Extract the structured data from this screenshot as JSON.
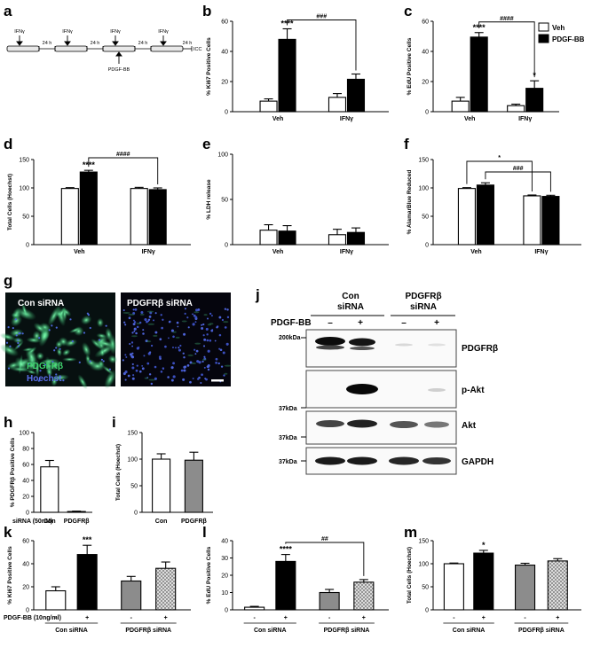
{
  "panels": {
    "a": "a",
    "b": "b",
    "c": "c",
    "d": "d",
    "e": "e",
    "f": "f",
    "g": "g",
    "h": "h",
    "i": "i",
    "j": "j",
    "k": "k",
    "l": "l",
    "m": "m"
  },
  "timeline": {
    "ifn": "IFNγ",
    "h24": "24 h",
    "icc": "ICC",
    "pdgf": "PDGF-BB"
  },
  "legend": {
    "veh": "Veh",
    "pdgf": "PDGF-BB"
  },
  "colors": {
    "black": "#000000",
    "white": "#ffffff",
    "gray": "#8c8c8c"
  },
  "chart_data": [
    {
      "id": "b",
      "type": "bar",
      "ylabel": "% Ki67 Positive Cells",
      "ylim": [
        0,
        60
      ],
      "yticks": [
        0,
        20,
        40,
        60
      ],
      "categories": [
        "Veh",
        "IFNγ"
      ],
      "series": [
        {
          "name": "Veh",
          "values": [
            7,
            9.5
          ],
          "err": [
            1.5,
            2.5
          ]
        },
        {
          "name": "PDGF-BB",
          "values": [
            48,
            21.5
          ],
          "err": [
            7,
            3.5
          ]
        }
      ],
      "annotations": [
        {
          "text": "****"
        },
        {
          "text": "###"
        }
      ]
    },
    {
      "id": "c",
      "type": "bar",
      "ylabel": "% EdU Positive Cells",
      "ylim": [
        0,
        60
      ],
      "yticks": [
        0,
        20,
        40,
        60
      ],
      "categories": [
        "Veh",
        "IFNγ"
      ],
      "series": [
        {
          "name": "Veh",
          "values": [
            7,
            4
          ],
          "err": [
            2.5,
            1
          ]
        },
        {
          "name": "PDGF-BB",
          "values": [
            49.5,
            15.5
          ],
          "err": [
            3,
            5
          ]
        }
      ],
      "annotations": [
        {
          "text": "****"
        },
        {
          "text": "####"
        },
        {
          "text": "*"
        }
      ]
    },
    {
      "id": "d",
      "type": "bar",
      "ylabel": "Total Cells (Hoechst)",
      "ylim": [
        0,
        150
      ],
      "yticks": [
        0,
        50,
        100,
        150
      ],
      "categories": [
        "Veh",
        "IFNγ"
      ],
      "series": [
        {
          "name": "Veh",
          "values": [
            99,
            99
          ],
          "err": [
            1.5,
            2
          ]
        },
        {
          "name": "PDGF-BB",
          "values": [
            128,
            97
          ],
          "err": [
            3,
            3
          ]
        }
      ],
      "annotations": [
        {
          "text": "****"
        },
        {
          "text": "####"
        }
      ]
    },
    {
      "id": "e",
      "type": "bar",
      "ylabel": "% LDH release",
      "ylim": [
        0,
        100
      ],
      "yticks": [
        0,
        50,
        100
      ],
      "categories": [
        "Veh",
        "IFNγ"
      ],
      "series": [
        {
          "name": "Veh",
          "values": [
            16,
            11
          ],
          "err": [
            6,
            6
          ]
        },
        {
          "name": "PDGF-BB",
          "values": [
            15,
            13.5
          ],
          "err": [
            6,
            5
          ]
        }
      ],
      "annotations": []
    },
    {
      "id": "f",
      "type": "bar",
      "ylabel": "% AlamarBlue Reduced",
      "ylim": [
        0,
        150
      ],
      "yticks": [
        0,
        50,
        100,
        150
      ],
      "categories": [
        "Veh",
        "IFNγ"
      ],
      "series": [
        {
          "name": "Veh",
          "values": [
            99,
            86
          ],
          "err": [
            1.5,
            1.5
          ]
        },
        {
          "name": "PDGF-BB",
          "values": [
            105,
            85
          ],
          "err": [
            4,
            2
          ]
        }
      ],
      "annotations": [
        {
          "text": "*"
        },
        {
          "text": "###"
        }
      ]
    },
    {
      "id": "h",
      "type": "bar",
      "ylabel": "% PDGFRβ Positive Cells",
      "ylim": [
        0,
        100
      ],
      "yticks": [
        0,
        20,
        40,
        60,
        80,
        100
      ],
      "categories": [
        "Con",
        "PDGFRβ"
      ],
      "xprefix": "siRNA (50nM)",
      "series": [
        {
          "name": "",
          "values": [
            57,
            1
          ],
          "err": [
            8,
            0.5
          ]
        }
      ],
      "annotations": []
    },
    {
      "id": "i",
      "type": "bar",
      "ylabel": "Total Cells (Hoechst)",
      "ylim": [
        0,
        150
      ],
      "yticks": [
        0,
        50,
        100,
        150
      ],
      "categories": [
        "Con",
        "PDGFRβ"
      ],
      "series": [
        {
          "name": "",
          "values": [
            100,
            98
          ],
          "err": [
            10,
            15
          ]
        }
      ],
      "annotations": []
    },
    {
      "id": "k",
      "type": "bar",
      "ylabel": "% Ki67 Positive Cells",
      "ylim": [
        0,
        60
      ],
      "yticks": [
        0,
        20,
        40,
        60
      ],
      "categories": [
        "-",
        "+",
        "-",
        "+"
      ],
      "groups": [
        "Con siRNA",
        "PDGFRβ siRNA"
      ],
      "xprefix": "PDGF-BB (10ng/ml)",
      "series": [
        {
          "name": "",
          "values": [
            16.5,
            48,
            25,
            36
          ],
          "err": [
            3.5,
            8,
            4,
            5.5
          ]
        }
      ],
      "annotations": [
        {
          "text": "***"
        }
      ]
    },
    {
      "id": "l",
      "type": "bar",
      "ylabel": "% EdU Positive Cells",
      "ylim": [
        0,
        40
      ],
      "yticks": [
        0,
        10,
        20,
        30,
        40
      ],
      "categories": [
        "-",
        "+",
        "-",
        "+"
      ],
      "groups": [
        "Con siRNA",
        "PDGFRβ siRNA"
      ],
      "series": [
        {
          "name": "",
          "values": [
            1.5,
            28,
            10,
            16
          ],
          "err": [
            0.5,
            4,
            1.8,
            1.5
          ]
        }
      ],
      "annotations": [
        {
          "text": "****"
        },
        {
          "text": "##"
        }
      ]
    },
    {
      "id": "m",
      "type": "bar",
      "ylabel": "Total Cells (Hoechst)",
      "ylim": [
        0,
        150
      ],
      "yticks": [
        0,
        50,
        100,
        150
      ],
      "categories": [
        "-",
        "+",
        "-",
        "+"
      ],
      "groups": [
        "Con siRNA",
        "PDGFRβ siRNA"
      ],
      "series": [
        {
          "name": "",
          "values": [
            100,
            123,
            97,
            106
          ],
          "err": [
            1.5,
            6,
            4,
            5
          ]
        }
      ],
      "annotations": [
        {
          "text": "*"
        }
      ]
    }
  ],
  "micro": {
    "con": "Con siRNA",
    "pdgfrb": "PDGFRβ siRNA",
    "stain1": "PDGFRβ",
    "stain2": "Hoechst"
  },
  "western": {
    "con1": "Con",
    "con2": "siRNA",
    "pd1": "PDGFRβ",
    "pd2": "siRNA",
    "treat": "PDGF-BB",
    "minus": "–",
    "plus": "+",
    "m200": "200kDa",
    "m37a": "37kDa",
    "m37b": "37kDa",
    "m37c": "37kDa",
    "b1": "PDGFRβ",
    "b2": "p-Akt",
    "b3": "Akt",
    "b4": "GAPDH"
  }
}
